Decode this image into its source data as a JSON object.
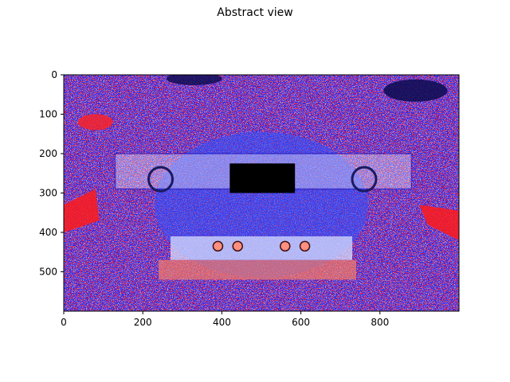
{
  "chart_data": {
    "type": "heatmap",
    "title": "Abstract view",
    "xlabel": "",
    "ylabel": "",
    "xlim": [
      0,
      1000
    ],
    "ylim": [
      600,
      0
    ],
    "x_ticks": [
      0,
      200,
      400,
      600,
      800
    ],
    "y_ticks": [
      0,
      100,
      200,
      300,
      400,
      500
    ],
    "image": {
      "description": "Seismic-colormap rendering of a car front view (edge/phase pattern)",
      "colormap": [
        "#00004c",
        "#0000ff",
        "#ffffff",
        "#ff0000",
        "#7f0000"
      ],
      "masked_region": {
        "x": [
          420,
          585
        ],
        "y": [
          225,
          300
        ],
        "color": "#000000"
      }
    },
    "grid": false
  }
}
